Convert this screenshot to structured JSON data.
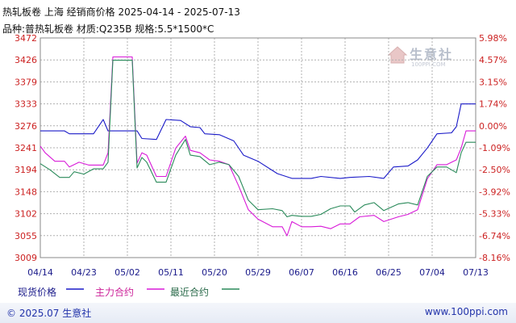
{
  "header": {
    "title_line1": "热轧板卷 上海 经销商价格 2025-04-14 - 2025-07-13",
    "title_line2": "品种:普热轧板卷 材质:Q235B 规格:5.5*1500*C"
  },
  "watermark": {
    "text": "生意社",
    "url": "100PPI.COM"
  },
  "footer": {
    "copyright": "© 2025.07 生意社",
    "site": "www.100ppi.com"
  },
  "colors": {
    "spot": "#1a1ac8",
    "main_contract": "#d81ad8",
    "recent_contract": "#2a8a5a",
    "grid": "#b0b0b0",
    "left_axis_text": "#cc2222",
    "right_axis_text": "#cc2222",
    "x_axis_text": "#1a1a8a"
  },
  "chart_data": {
    "type": "line",
    "x_tick_labels": [
      "04/14",
      "04/23",
      "05/02",
      "05/11",
      "05/20",
      "05/29",
      "06/07",
      "06/16",
      "06/25",
      "07/04",
      "07/13"
    ],
    "xlim": [
      "2025-04-14",
      "2025-07-13"
    ],
    "ylim": [
      3009,
      3472
    ],
    "y_ticks_left": [
      "3472",
      "3426",
      "3379",
      "3333",
      "3276",
      "3241",
      "3194",
      "3148",
      "3102",
      "3055",
      "3009"
    ],
    "y_ticks_right": [
      "5.98%",
      "4.57%",
      "3.15%",
      "1.74%",
      "0.00%",
      "-1.09%",
      "-2.50%",
      "-3.92%",
      "-5.33%",
      "-6.74%",
      "-8.16%"
    ],
    "grid": true,
    "legend_position": "bottom-left",
    "series": [
      {
        "name": "现货价格",
        "color_key": "spot",
        "points": [
          [
            "2025-04-14",
            3276
          ],
          [
            "2025-04-19",
            3276
          ],
          [
            "2025-04-20",
            3270
          ],
          [
            "2025-04-25",
            3270
          ],
          [
            "2025-04-27",
            3300
          ],
          [
            "2025-04-28",
            3276
          ],
          [
            "2025-05-04",
            3276
          ],
          [
            "2025-05-05",
            3260
          ],
          [
            "2025-05-08",
            3258
          ],
          [
            "2025-05-10",
            3300
          ],
          [
            "2025-05-13",
            3298
          ],
          [
            "2025-05-15",
            3285
          ],
          [
            "2025-05-17",
            3283
          ],
          [
            "2025-05-18",
            3270
          ],
          [
            "2025-05-21",
            3268
          ],
          [
            "2025-05-24",
            3255
          ],
          [
            "2025-05-26",
            3225
          ],
          [
            "2025-05-29",
            3212
          ],
          [
            "2025-06-02",
            3186
          ],
          [
            "2025-06-05",
            3176
          ],
          [
            "2025-06-09",
            3176
          ],
          [
            "2025-06-11",
            3180
          ],
          [
            "2025-06-15",
            3176
          ],
          [
            "2025-06-17",
            3178
          ],
          [
            "2025-06-21",
            3180
          ],
          [
            "2025-06-24",
            3176
          ],
          [
            "2025-06-26",
            3200
          ],
          [
            "2025-06-29",
            3202
          ],
          [
            "2025-07-01",
            3215
          ],
          [
            "2025-07-03",
            3240
          ],
          [
            "2025-07-05",
            3270
          ],
          [
            "2025-07-08",
            3272
          ],
          [
            "2025-07-09",
            3285
          ],
          [
            "2025-07-10",
            3333
          ],
          [
            "2025-07-13",
            3333
          ]
        ]
      },
      {
        "name": "主力合约",
        "color_key": "main_contract",
        "points": [
          [
            "2025-04-14",
            3244
          ],
          [
            "2025-04-15",
            3230
          ],
          [
            "2025-04-17",
            3212
          ],
          [
            "2025-04-19",
            3212
          ],
          [
            "2025-04-20",
            3200
          ],
          [
            "2025-04-22",
            3210
          ],
          [
            "2025-04-24",
            3204
          ],
          [
            "2025-04-27",
            3204
          ],
          [
            "2025-04-28",
            3230
          ],
          [
            "2025-04-29",
            3432
          ],
          [
            "2025-05-03",
            3432
          ],
          [
            "2025-05-04",
            3208
          ],
          [
            "2025-05-05",
            3230
          ],
          [
            "2025-05-06",
            3225
          ],
          [
            "2025-05-08",
            3180
          ],
          [
            "2025-05-10",
            3180
          ],
          [
            "2025-05-12",
            3240
          ],
          [
            "2025-05-14",
            3265
          ],
          [
            "2025-05-15",
            3235
          ],
          [
            "2025-05-17",
            3230
          ],
          [
            "2025-05-19",
            3215
          ],
          [
            "2025-05-21",
            3212
          ],
          [
            "2025-05-23",
            3205
          ],
          [
            "2025-05-25",
            3160
          ],
          [
            "2025-05-27",
            3110
          ],
          [
            "2025-05-29",
            3090
          ],
          [
            "2025-06-01",
            3074
          ],
          [
            "2025-06-03",
            3074
          ],
          [
            "2025-06-04",
            3055
          ],
          [
            "2025-06-05",
            3085
          ],
          [
            "2025-06-07",
            3074
          ],
          [
            "2025-06-09",
            3074
          ],
          [
            "2025-06-11",
            3075
          ],
          [
            "2025-06-13",
            3070
          ],
          [
            "2025-06-15",
            3080
          ],
          [
            "2025-06-17",
            3080
          ],
          [
            "2025-06-19",
            3095
          ],
          [
            "2025-06-22",
            3098
          ],
          [
            "2025-06-24",
            3085
          ],
          [
            "2025-06-27",
            3095
          ],
          [
            "2025-06-29",
            3100
          ],
          [
            "2025-07-01",
            3110
          ],
          [
            "2025-07-03",
            3175
          ],
          [
            "2025-07-05",
            3205
          ],
          [
            "2025-07-07",
            3205
          ],
          [
            "2025-07-09",
            3215
          ],
          [
            "2025-07-10",
            3240
          ],
          [
            "2025-07-11",
            3276
          ],
          [
            "2025-07-13",
            3276
          ]
        ]
      },
      {
        "name": "最近合约",
        "color_key": "recent_contract",
        "points": [
          [
            "2025-04-14",
            3207
          ],
          [
            "2025-04-16",
            3194
          ],
          [
            "2025-04-18",
            3178
          ],
          [
            "2025-04-20",
            3178
          ],
          [
            "2025-04-21",
            3190
          ],
          [
            "2025-04-23",
            3185
          ],
          [
            "2025-04-25",
            3196
          ],
          [
            "2025-04-27",
            3196
          ],
          [
            "2025-04-28",
            3210
          ],
          [
            "2025-04-29",
            3425
          ],
          [
            "2025-05-03",
            3425
          ],
          [
            "2025-05-04",
            3198
          ],
          [
            "2025-05-05",
            3220
          ],
          [
            "2025-05-06",
            3210
          ],
          [
            "2025-05-08",
            3168
          ],
          [
            "2025-05-10",
            3168
          ],
          [
            "2025-05-12",
            3225
          ],
          [
            "2025-05-14",
            3258
          ],
          [
            "2025-05-15",
            3225
          ],
          [
            "2025-05-17",
            3222
          ],
          [
            "2025-05-19",
            3205
          ],
          [
            "2025-05-21",
            3210
          ],
          [
            "2025-05-23",
            3205
          ],
          [
            "2025-05-25",
            3180
          ],
          [
            "2025-05-27",
            3130
          ],
          [
            "2025-05-29",
            3110
          ],
          [
            "2025-06-01",
            3112
          ],
          [
            "2025-06-03",
            3108
          ],
          [
            "2025-06-04",
            3095
          ],
          [
            "2025-06-05",
            3098
          ],
          [
            "2025-06-07",
            3096
          ],
          [
            "2025-06-09",
            3096
          ],
          [
            "2025-06-11",
            3100
          ],
          [
            "2025-06-13",
            3112
          ],
          [
            "2025-06-15",
            3118
          ],
          [
            "2025-06-17",
            3118
          ],
          [
            "2025-06-18",
            3105
          ],
          [
            "2025-06-20",
            3120
          ],
          [
            "2025-06-22",
            3125
          ],
          [
            "2025-06-24",
            3108
          ],
          [
            "2025-06-27",
            3122
          ],
          [
            "2025-06-29",
            3125
          ],
          [
            "2025-07-01",
            3120
          ],
          [
            "2025-07-03",
            3180
          ],
          [
            "2025-07-05",
            3200
          ],
          [
            "2025-07-07",
            3200
          ],
          [
            "2025-07-09",
            3188
          ],
          [
            "2025-07-10",
            3230
          ],
          [
            "2025-07-11",
            3252
          ],
          [
            "2025-07-13",
            3252
          ]
        ]
      }
    ]
  }
}
